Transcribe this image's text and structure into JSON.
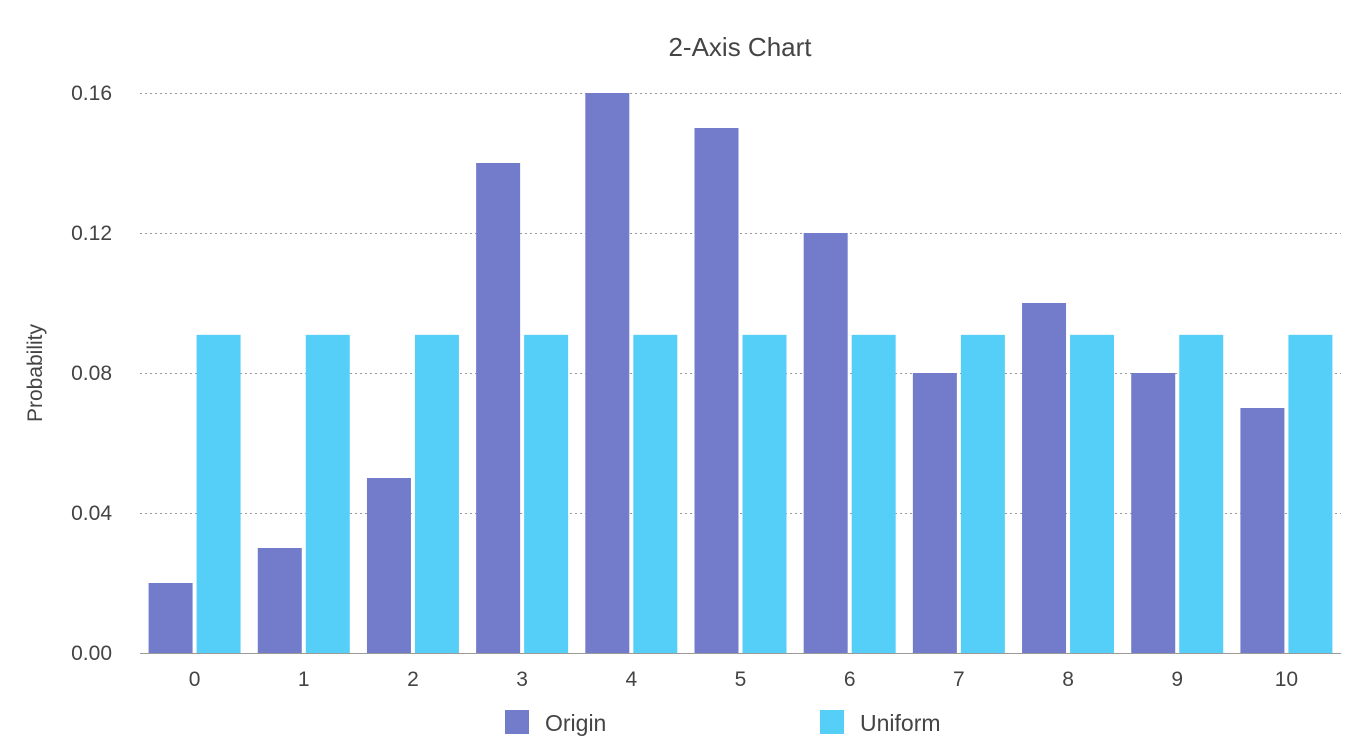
{
  "chart_data": {
    "type": "bar",
    "title": "2-Axis Chart",
    "xlabel": "",
    "ylabel": "Probability",
    "ylim": [
      0,
      0.16
    ],
    "yticks": [
      "0.00",
      "0.04",
      "0.08",
      "0.12",
      "0.16"
    ],
    "ytick_values": [
      0,
      0.04,
      0.08,
      0.12,
      0.16
    ],
    "categories": [
      "0",
      "1",
      "2",
      "3",
      "4",
      "5",
      "6",
      "7",
      "8",
      "9",
      "10"
    ],
    "grid": true,
    "legend_position": "bottom",
    "series": [
      {
        "name": "Origin",
        "color": "#737cca",
        "values": [
          0.02,
          0.03,
          0.05,
          0.14,
          0.16,
          0.15,
          0.12,
          0.08,
          0.1,
          0.08,
          0.07
        ]
      },
      {
        "name": "Uniform",
        "color": "#56cff8",
        "values": [
          0.0909,
          0.0909,
          0.0909,
          0.0909,
          0.0909,
          0.0909,
          0.0909,
          0.0909,
          0.0909,
          0.0909,
          0.0909
        ]
      }
    ]
  }
}
